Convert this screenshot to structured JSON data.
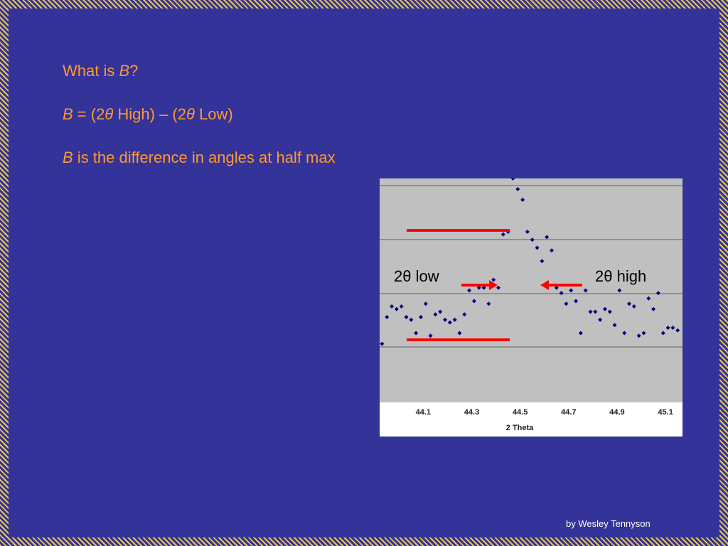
{
  "text": {
    "q_prefix": "What is ",
    "q_var": "B",
    "q_suffix": "?",
    "eq_var": "B",
    "eq_p1": " = (2",
    "eq_theta1": "θ",
    "eq_p2": " High) – (2",
    "eq_theta2": "θ",
    "eq_p3": " Low)",
    "def_var": "B",
    "def_rest": " is the difference in angles at half max",
    "label_low": "2θ low",
    "label_high": "2θ high",
    "credit": "by Wesley Tennyson"
  },
  "colors": {
    "background": "#333399",
    "accent_text": "#ff9933",
    "stripe": "#e8c84e",
    "plot_area": "#c0c0c0",
    "points": "#000080",
    "annotation": "#ff0000"
  },
  "chart_data": {
    "type": "scatter",
    "xlabel": "2 Theta",
    "ylabel": "",
    "x_ticks": [
      "44.1",
      "44.3",
      "44.5",
      "44.7",
      "44.9",
      "45.1"
    ],
    "xlim": [
      43.92,
      45.17
    ],
    "ylim": [
      0,
      4.2
    ],
    "grid": true,
    "legend": "none",
    "points": [
      [
        43.93,
        1.1
      ],
      [
        43.95,
        1.6
      ],
      [
        43.97,
        1.8
      ],
      [
        43.99,
        1.75
      ],
      [
        44.01,
        1.8
      ],
      [
        44.03,
        1.6
      ],
      [
        44.05,
        1.55
      ],
      [
        44.07,
        1.3
      ],
      [
        44.09,
        1.6
      ],
      [
        44.11,
        1.85
      ],
      [
        44.13,
        1.25
      ],
      [
        44.15,
        1.65
      ],
      [
        44.17,
        1.7
      ],
      [
        44.19,
        1.55
      ],
      [
        44.21,
        1.5
      ],
      [
        44.23,
        1.55
      ],
      [
        44.25,
        1.3
      ],
      [
        44.27,
        1.65
      ],
      [
        44.29,
        2.1
      ],
      [
        44.31,
        1.9
      ],
      [
        44.33,
        2.15
      ],
      [
        44.35,
        2.15
      ],
      [
        44.37,
        1.85
      ],
      [
        44.39,
        2.3
      ],
      [
        44.41,
        2.15
      ],
      [
        44.43,
        3.15
      ],
      [
        44.45,
        3.2
      ],
      [
        44.47,
        4.2
      ],
      [
        44.49,
        4.0
      ],
      [
        44.51,
        3.8
      ],
      [
        44.53,
        3.2
      ],
      [
        44.55,
        3.05
      ],
      [
        44.57,
        2.9
      ],
      [
        44.59,
        2.65
      ],
      [
        44.61,
        3.1
      ],
      [
        44.63,
        2.85
      ],
      [
        44.65,
        2.15
      ],
      [
        44.67,
        2.05
      ],
      [
        44.69,
        1.85
      ],
      [
        44.71,
        2.1
      ],
      [
        44.73,
        1.9
      ],
      [
        44.75,
        1.3
      ],
      [
        44.77,
        2.1
      ],
      [
        44.79,
        1.7
      ],
      [
        44.81,
        1.7
      ],
      [
        44.83,
        1.55
      ],
      [
        44.85,
        1.75
      ],
      [
        44.87,
        1.7
      ],
      [
        44.89,
        1.45
      ],
      [
        44.91,
        2.1
      ],
      [
        44.93,
        1.3
      ],
      [
        44.95,
        1.85
      ],
      [
        44.97,
        1.8
      ],
      [
        44.99,
        1.25
      ],
      [
        45.01,
        1.3
      ],
      [
        45.03,
        1.95
      ],
      [
        45.05,
        1.75
      ],
      [
        45.07,
        2.05
      ],
      [
        45.09,
        1.3
      ],
      [
        45.11,
        1.4
      ],
      [
        45.13,
        1.4
      ],
      [
        45.15,
        1.35
      ]
    ]
  }
}
